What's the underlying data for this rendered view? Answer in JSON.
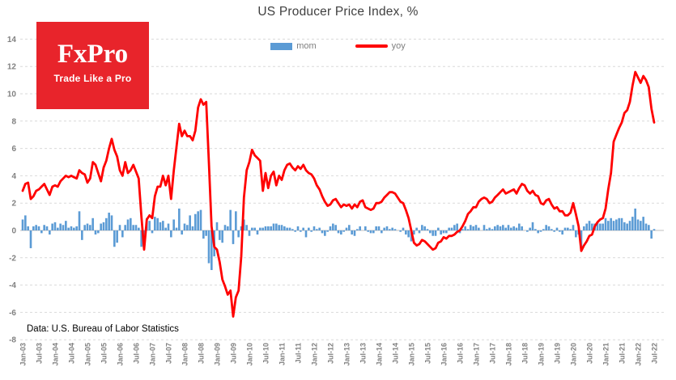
{
  "page": {
    "background": "#FFFFFF"
  },
  "logo": {
    "text": "FxPro",
    "tagline": "Trade Like a Pro",
    "bg_color": "#E8242B",
    "text_color": "#FFFFFF"
  },
  "source_note": "Data: U.S. Bureau of Labor Statistics",
  "axis_style": {
    "tick_label_color": "#808080",
    "grid_color": "#D9D9D9",
    "zero_axis_color": "#BFBFBF"
  },
  "chart_data": {
    "type": "bar+line combo",
    "title": "US Producer Price Index, %",
    "title_color": "#404040",
    "xlabel": "",
    "ylabel": "",
    "frequency": "monthly",
    "x_start": "Jan-03",
    "x_end": "Jul-22",
    "ylim": [
      -8,
      14
    ],
    "y_ticks": [
      -8,
      -6,
      -4,
      -2,
      0,
      2,
      4,
      6,
      8,
      10,
      12,
      14
    ],
    "grid": "horizontal dashed",
    "x_tick_labels": [
      "Jan-03",
      "Jul-03",
      "Jan-04",
      "Jul-04",
      "Jan-05",
      "Jul-05",
      "Jan-06",
      "Jul-06",
      "Jan-07",
      "Jul-07",
      "Jan-08",
      "Jul-08",
      "Jan-09",
      "Jul-09",
      "Jan-10",
      "Jul-10",
      "Jan-11",
      "Jul-11",
      "Jan-12",
      "Jul-12",
      "Jan-13",
      "Jul-13",
      "Jan-14",
      "Jul-14",
      "Jan-15",
      "Jul-15",
      "Jan-16",
      "Jul-16",
      "Jan-17",
      "Jul-17",
      "Jan-18",
      "Jul-18",
      "Jan-19",
      "Jul-19",
      "Jan-20",
      "Jul-20",
      "Jan-21",
      "Jul-21",
      "Jan-22",
      "Jul-22"
    ],
    "x_tick_every_n_months": 6,
    "legend": {
      "position": "top-center",
      "entries": [
        {
          "label": "mom",
          "type": "bar",
          "color": "#5B9BD5"
        },
        {
          "label": "yoy",
          "type": "line",
          "color": "#FF0000"
        }
      ]
    },
    "series": [
      {
        "name": "mom",
        "type": "bar",
        "color": "#5B9BD5",
        "values": [
          0.8,
          1.1,
          0.3,
          -1.3,
          0.3,
          0.4,
          0.3,
          -0.2,
          0.4,
          0.3,
          -0.3,
          0.5,
          0.6,
          0.2,
          0.5,
          0.4,
          0.7,
          0.2,
          0.3,
          0.2,
          0.3,
          1.4,
          -0.7,
          0.4,
          0.5,
          0.4,
          0.9,
          -0.3,
          -0.2,
          0.5,
          0.6,
          0.9,
          1.3,
          1.1,
          -1.2,
          -0.9,
          0.4,
          -0.5,
          0.4,
          0.8,
          0.9,
          0.4,
          0.4,
          0.2,
          -1.2,
          -1.1,
          0.9,
          0.7,
          -0.2,
          1.0,
          0.9,
          0.6,
          0.7,
          0.2,
          0.5,
          -0.5,
          0.8,
          0.2,
          1.6,
          -0.3,
          0.5,
          0.4,
          1.1,
          0.3,
          1.2,
          1.4,
          1.5,
          -0.6,
          -0.4,
          -2.4,
          -2.9,
          -1.9,
          0.6,
          -0.7,
          -0.9,
          0.4,
          0.3,
          1.5,
          -1.0,
          1.4,
          -0.5,
          0.3,
          0.8,
          0.4,
          -0.4,
          0.2,
          0.2,
          -0.3,
          0.2,
          0.2,
          0.3,
          0.3,
          0.3,
          0.5,
          0.5,
          0.4,
          0.4,
          0.3,
          0.2,
          0.2,
          0.1,
          -0.1,
          0.3,
          -0.1,
          0.2,
          -0.5,
          0.2,
          -0.1,
          0.3,
          0.1,
          0.2,
          -0.2,
          -0.4,
          -0.1,
          0.3,
          0.5,
          0.4,
          -0.2,
          -0.3,
          -0.1,
          0.2,
          0.4,
          -0.3,
          -0.4,
          0.1,
          0.3,
          0.0,
          0.3,
          -0.1,
          -0.2,
          -0.2,
          0.3,
          0.3,
          -0.2,
          0.2,
          0.3,
          0.1,
          0.2,
          0.1,
          0.0,
          -0.1,
          0.2,
          -0.3,
          -0.5,
          -0.8,
          -0.3,
          0.2,
          -0.2,
          0.4,
          0.3,
          0.1,
          -0.2,
          -0.4,
          -0.4,
          0.2,
          -0.3,
          -0.2,
          -0.2,
          0.2,
          0.2,
          0.4,
          0.5,
          -0.2,
          0.1,
          0.3,
          0.1,
          0.4,
          0.3,
          0.4,
          0.2,
          0.0,
          0.4,
          0.1,
          0.2,
          0.1,
          0.3,
          0.4,
          0.3,
          0.4,
          0.2,
          0.4,
          0.2,
          0.3,
          0.2,
          0.5,
          0.3,
          0.0,
          -0.1,
          0.2,
          0.6,
          0.1,
          -0.2,
          -0.1,
          0.1,
          0.4,
          0.3,
          0.1,
          -0.1,
          0.2,
          -0.1,
          -0.3,
          0.2,
          0.2,
          0.1,
          0.4,
          -0.5,
          -0.3,
          -1.2,
          0.3,
          0.5,
          0.7,
          0.5,
          0.5,
          0.6,
          0.5,
          0.5,
          0.9,
          0.7,
          0.9,
          0.7,
          0.8,
          0.9,
          0.9,
          0.6,
          0.5,
          0.7,
          1.0,
          1.6,
          0.8,
          0.7,
          1.0,
          0.5,
          0.4,
          -0.6,
          0.1
        ]
      },
      {
        "name": "yoy",
        "type": "line",
        "color": "#FF0000",
        "values": [
          2.9,
          3.4,
          3.5,
          2.3,
          2.5,
          2.9,
          3.0,
          3.2,
          3.4,
          3.0,
          2.6,
          3.2,
          3.3,
          3.2,
          3.6,
          3.8,
          4.0,
          3.9,
          4.0,
          3.9,
          3.8,
          4.4,
          4.2,
          4.1,
          3.5,
          3.8,
          5.0,
          4.8,
          4.2,
          3.6,
          4.6,
          5.1,
          6.0,
          6.7,
          5.9,
          5.4,
          4.4,
          4.0,
          5.0,
          4.2,
          4.4,
          4.8,
          4.3,
          3.8,
          1.0,
          -1.4,
          0.8,
          1.1,
          0.9,
          2.5,
          3.2,
          3.2,
          4.0,
          3.3,
          4.0,
          2.3,
          4.4,
          6.1,
          7.8,
          6.9,
          7.3,
          6.9,
          6.9,
          6.6,
          7.3,
          9.0,
          9.6,
          9.2,
          9.4,
          5.0,
          0.3,
          -1.2,
          -1.4,
          -2.3,
          -3.6,
          -4.1,
          -4.7,
          -4.4,
          -6.3,
          -4.9,
          -4.4,
          -1.9,
          2.4,
          4.4,
          5.0,
          5.9,
          5.5,
          5.3,
          5.1,
          2.9,
          4.2,
          3.1,
          4.0,
          4.3,
          3.3,
          4.0,
          3.7,
          4.4,
          4.8,
          4.9,
          4.6,
          4.4,
          4.7,
          4.5,
          4.8,
          4.4,
          4.2,
          4.1,
          3.8,
          3.3,
          3.0,
          2.5,
          2.1,
          1.8,
          1.9,
          2.2,
          2.3,
          2.0,
          1.7,
          1.9,
          1.8,
          1.9,
          1.6,
          1.9,
          1.7,
          2.1,
          2.2,
          1.7,
          1.6,
          1.5,
          1.6,
          2.0,
          2.0,
          2.1,
          2.4,
          2.6,
          2.8,
          2.8,
          2.7,
          2.4,
          2.1,
          2.0,
          1.5,
          0.9,
          0.0,
          -0.9,
          -1.1,
          -1.0,
          -0.7,
          -0.8,
          -1.0,
          -1.2,
          -1.4,
          -1.3,
          -0.9,
          -0.8,
          -0.5,
          -0.6,
          -0.4,
          -0.4,
          -0.3,
          -0.1,
          0.0,
          0.3,
          0.7,
          1.2,
          1.4,
          1.7,
          1.7,
          2.1,
          2.3,
          2.4,
          2.3,
          2.0,
          2.1,
          2.4,
          2.6,
          2.8,
          3.0,
          2.7,
          2.8,
          2.9,
          3.0,
          2.7,
          3.1,
          3.4,
          3.3,
          2.9,
          2.7,
          2.9,
          2.6,
          2.5,
          2.0,
          1.9,
          2.2,
          2.3,
          1.9,
          1.6,
          1.7,
          1.4,
          1.4,
          1.1,
          1.1,
          1.3,
          2.0,
          1.2,
          0.3,
          -1.5,
          -1.1,
          -0.8,
          -0.4,
          -0.3,
          0.3,
          0.6,
          0.8,
          0.9,
          1.6,
          3.0,
          4.2,
          6.5,
          7.0,
          7.5,
          7.9,
          8.6,
          8.8,
          9.4,
          10.6,
          11.6,
          11.2,
          10.8,
          11.3,
          11.0,
          10.5,
          8.9,
          7.9
        ]
      }
    ]
  }
}
